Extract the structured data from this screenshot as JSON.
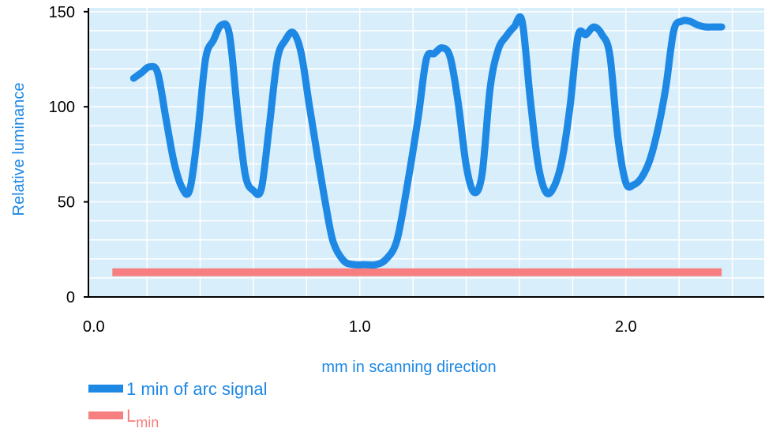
{
  "chart_data": {
    "type": "line",
    "xlabel": "mm in scanning direction",
    "ylabel": "Relative luminance",
    "xlim": [
      -0.02,
      2.52
    ],
    "ylim": [
      0,
      152
    ],
    "x_ticks": [
      {
        "value": 0.0,
        "label": "0.0"
      },
      {
        "value": 1.0,
        "label": "1.0"
      },
      {
        "value": 2.0,
        "label": "2.0"
      }
    ],
    "y_ticks": [
      {
        "value": 0,
        "label": "0"
      },
      {
        "value": 50,
        "label": "50"
      },
      {
        "value": 100,
        "label": "100"
      },
      {
        "value": 150,
        "label": "150"
      }
    ],
    "grid": true,
    "legend_position": "bottom-left",
    "colors": {
      "plot_background": "#d8eefb",
      "grid": "#ffffff",
      "signal": "#1e88e5",
      "lmin": "#f77f7f",
      "axis": "#000000"
    },
    "series": [
      {
        "name": "1 min of arc signal",
        "x": [
          0.15,
          0.18,
          0.21,
          0.24,
          0.27,
          0.3,
          0.33,
          0.36,
          0.39,
          0.42,
          0.45,
          0.48,
          0.51,
          0.54,
          0.57,
          0.6,
          0.63,
          0.66,
          0.69,
          0.72,
          0.75,
          0.78,
          0.81,
          0.84,
          0.87,
          0.9,
          0.94,
          0.98,
          1.02,
          1.06,
          1.1,
          1.14,
          1.18,
          1.22,
          1.25,
          1.28,
          1.31,
          1.34,
          1.37,
          1.4,
          1.43,
          1.46,
          1.49,
          1.52,
          1.55,
          1.58,
          1.61,
          1.64,
          1.67,
          1.7,
          1.73,
          1.76,
          1.79,
          1.82,
          1.85,
          1.88,
          1.91,
          1.94,
          1.97,
          2.0,
          2.03,
          2.06,
          2.09,
          2.12,
          2.15,
          2.18,
          2.21,
          2.24,
          2.27,
          2.3,
          2.33,
          2.36
        ],
        "y": [
          115,
          118,
          121,
          118,
          95,
          72,
          58,
          56,
          85,
          125,
          135,
          143,
          138,
          98,
          64,
          56,
          57,
          90,
          125,
          135,
          139,
          128,
          101,
          75,
          50,
          29,
          19,
          17,
          17,
          17,
          20,
          30,
          60,
          95,
          125,
          128,
          131,
          126,
          102,
          69,
          55,
          65,
          110,
          130,
          137,
          142,
          145,
          105,
          70,
          55,
          58,
          72,
          100,
          137,
          138,
          142,
          138,
          127,
          84,
          60,
          59,
          63,
          72,
          88,
          110,
          140,
          145,
          145,
          143,
          142,
          142,
          142
        ]
      },
      {
        "name": "L",
        "name_subscript": "min",
        "x": [
          0.07,
          2.36
        ],
        "y": [
          13,
          13
        ]
      }
    ]
  }
}
